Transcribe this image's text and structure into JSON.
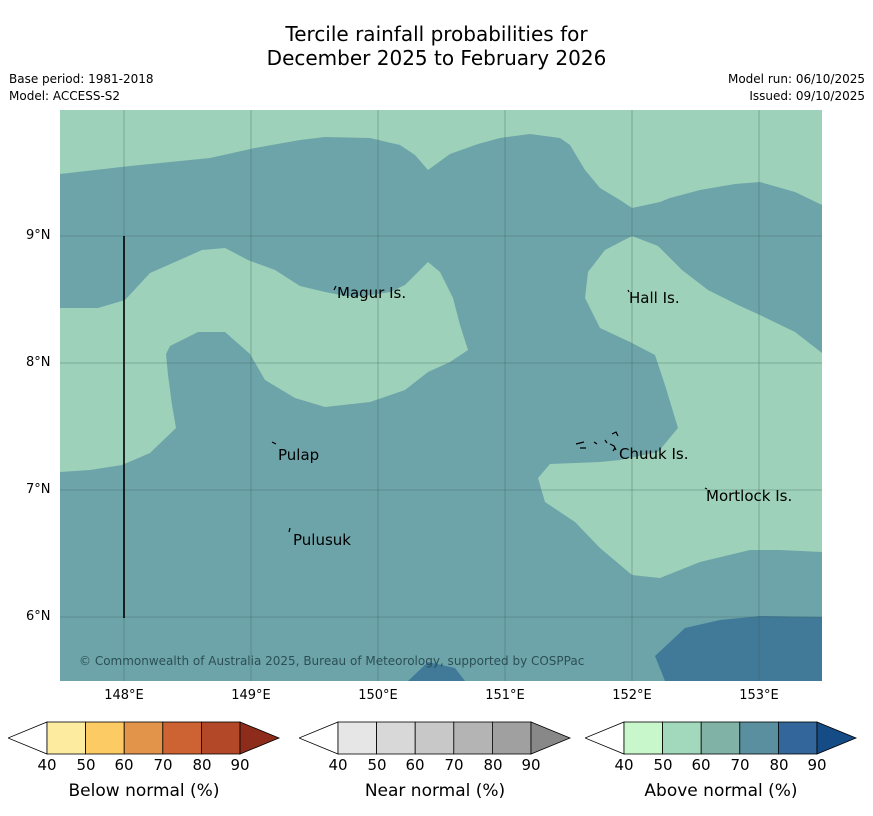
{
  "title_line1": "Tercile rainfall probabilities for",
  "title_line2": "December 2025 to February 2026",
  "base_period": "Base period: 1981-2018",
  "model": "Model: ACCESS-S2",
  "model_run": "Model run: 06/10/2025",
  "issued": "Issued: 09/10/2025",
  "copyright": "© Commonwealth of Australia 2025, Bureau of Meteorology, supported by COSPPac",
  "y_ticks": [
    "9°N",
    "8°N",
    "7°N",
    "6°N"
  ],
  "x_ticks": [
    "148°E",
    "149°E",
    "150°E",
    "151°E",
    "152°E",
    "153°E"
  ],
  "places": [
    {
      "name": "Magur Is."
    },
    {
      "name": "Hall Is."
    },
    {
      "name": "Pulap"
    },
    {
      "name": "Chuuk Is."
    },
    {
      "name": "Mortlock Is."
    },
    {
      "name": "Pulusuk"
    }
  ],
  "colorbars": [
    {
      "title": "Below normal (%)",
      "ticks": [
        "40",
        "50",
        "60",
        "70",
        "80",
        "90"
      ],
      "colors": [
        "#fdeca0",
        "#fdcb63",
        "#e2944a",
        "#cd6233",
        "#b24828",
        "#8e2c1c"
      ]
    },
    {
      "title": "Near normal (%)",
      "ticks": [
        "40",
        "50",
        "60",
        "70",
        "80",
        "90"
      ],
      "colors": [
        "#e6e6e6",
        "#d8d8d8",
        "#c8c8c8",
        "#b4b4b4",
        "#a0a0a0",
        "#888888"
      ]
    },
    {
      "title": "Above normal (%)",
      "ticks": [
        "40",
        "50",
        "60",
        "70",
        "80",
        "90"
      ],
      "colors": [
        "#c8f7cc",
        "#a2d8bc",
        "#80b3a6",
        "#5a8fa0",
        "#33669a",
        "#154c85"
      ]
    }
  ],
  "map_colors": {
    "a50_60": "#9dd1b9",
    "a60_70": "#6da4a9",
    "a70_80": "#417a99"
  }
}
